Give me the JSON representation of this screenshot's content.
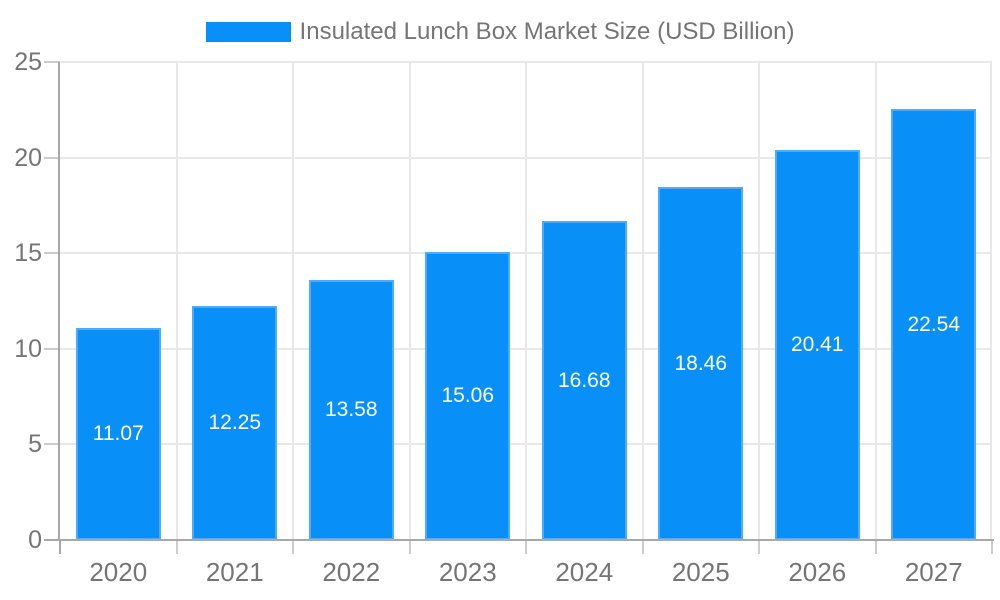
{
  "chart_data": {
    "type": "bar",
    "title": "Insulated Lunch Box Market Size (USD Billion)",
    "categories": [
      "2020",
      "2021",
      "2022",
      "2023",
      "2024",
      "2025",
      "2026",
      "2027"
    ],
    "values": [
      11.07,
      12.25,
      13.58,
      15.06,
      16.68,
      18.46,
      20.41,
      22.54
    ],
    "value_labels": [
      "11.07",
      "12.25",
      "13.58",
      "15.06",
      "16.68",
      "18.46",
      "20.41",
      "22.54"
    ],
    "xlabel": "",
    "ylabel": "",
    "ylim": [
      0,
      25
    ],
    "ytick_labels": [
      "0",
      "5",
      "10",
      "15",
      "20",
      "25"
    ],
    "ytick_values": [
      0,
      5,
      10,
      15,
      20,
      25
    ],
    "grid": true,
    "legend_position": "top",
    "colors": {
      "bar_fill": "#0990f8",
      "bar_border": "#4fabf7",
      "bar_label_text": "#ffffff",
      "grid_line": "#e8e8e8",
      "axis_line": "#a8a8a8",
      "tick_mark": "#cccccc",
      "tick_text": "#757575",
      "background": "#ffffff"
    }
  }
}
